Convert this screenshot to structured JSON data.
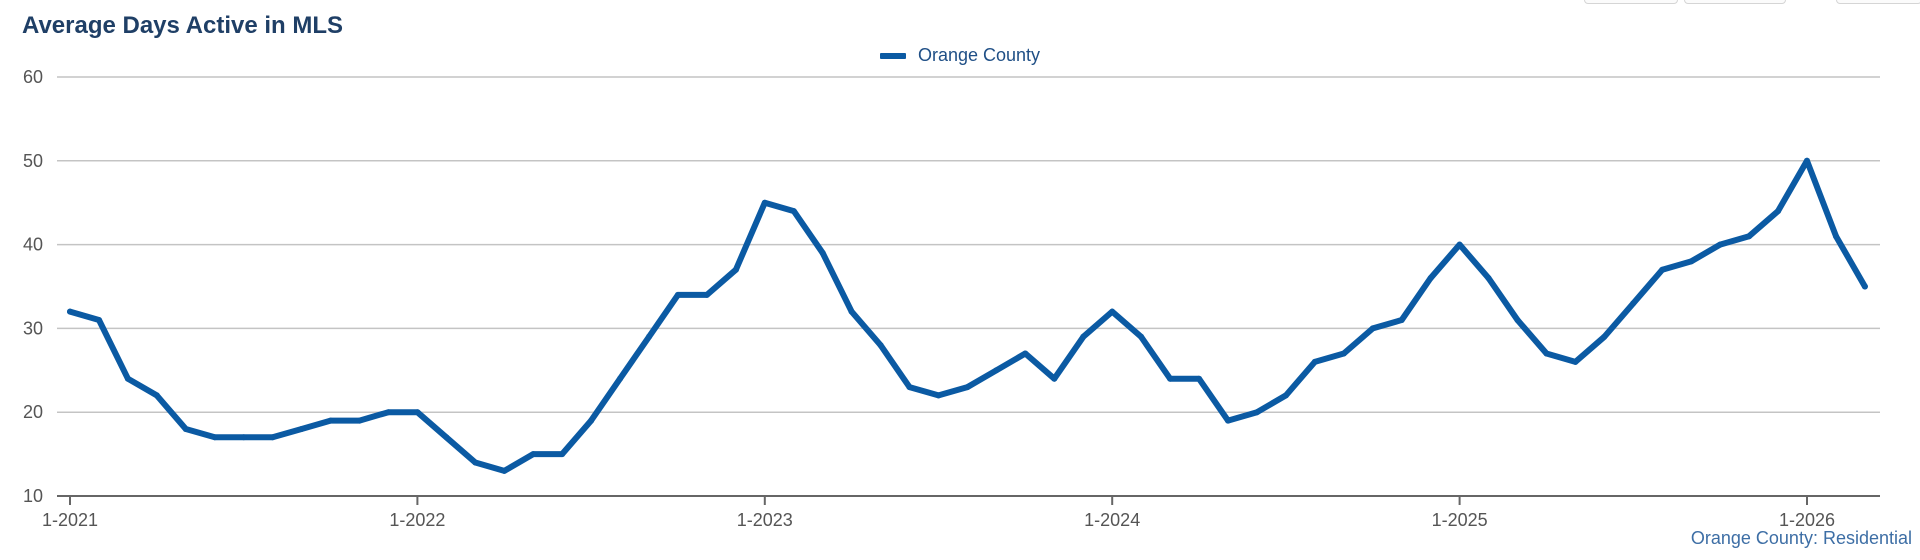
{
  "header": {
    "title": "Average Days Active in MLS"
  },
  "legend": {
    "items": [
      {
        "label": "Orange County",
        "color": "#0b5aa3"
      }
    ]
  },
  "footer": {
    "source": "Orange County: Residential"
  },
  "colors": {
    "line": "#0b5aa3",
    "grid": "#c4c4c4",
    "axis": "#666666",
    "title": "#1f3f66"
  },
  "chart_data": {
    "type": "line",
    "title": "Average Days Active in MLS",
    "xlabel": "",
    "ylabel": "",
    "ylim": [
      10,
      60
    ],
    "yticks": [
      10,
      20,
      30,
      40,
      50,
      60
    ],
    "xticks": [
      "1-2021",
      "1-2022",
      "1-2023",
      "1-2024",
      "1-2025",
      "1-2026"
    ],
    "grid": "horizontal",
    "legend_position": "top-center",
    "series": [
      {
        "name": "Orange County",
        "x": [
          "1-2021",
          "2-2021",
          "3-2021",
          "4-2021",
          "5-2021",
          "6-2021",
          "7-2021",
          "8-2021",
          "9-2021",
          "10-2021",
          "11-2021",
          "12-2021",
          "1-2022",
          "2-2022",
          "3-2022",
          "4-2022",
          "5-2022",
          "6-2022",
          "7-2022",
          "8-2022",
          "9-2022",
          "10-2022",
          "11-2022",
          "12-2022",
          "1-2023",
          "2-2023",
          "3-2023",
          "4-2023",
          "5-2023",
          "6-2023",
          "7-2023",
          "8-2023",
          "9-2023",
          "10-2023",
          "11-2023",
          "12-2023",
          "1-2024",
          "2-2024",
          "3-2024",
          "4-2024",
          "5-2024",
          "6-2024",
          "7-2024",
          "8-2024",
          "9-2024",
          "10-2024",
          "11-2024",
          "12-2024",
          "1-2025",
          "2-2025",
          "3-2025",
          "4-2025",
          "5-2025",
          "6-2025",
          "7-2025",
          "8-2025",
          "9-2025",
          "10-2025",
          "11-2025",
          "12-2025",
          "1-2026",
          "2-2026",
          "3-2026"
        ],
        "values": [
          32,
          31,
          24,
          22,
          18,
          17,
          17,
          17,
          18,
          19,
          19,
          20,
          20,
          17,
          14,
          13,
          15,
          15,
          19,
          24,
          29,
          34,
          34,
          37,
          45,
          44,
          39,
          32,
          28,
          23,
          22,
          23,
          25,
          27,
          24,
          29,
          32,
          29,
          24,
          24,
          19,
          20,
          22,
          26,
          27,
          30,
          31,
          36,
          40,
          36,
          31,
          27,
          26,
          29,
          33,
          37,
          38,
          40,
          41,
          44,
          50,
          41,
          35
        ]
      }
    ]
  }
}
